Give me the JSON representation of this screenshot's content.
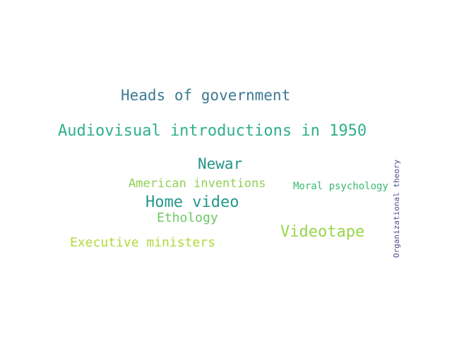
{
  "words": {
    "heads": {
      "text": "Heads of government",
      "color": "#3b7a93"
    },
    "audio": {
      "text": "Audiovisual introductions in 1950",
      "color": "#2fb08a"
    },
    "newar": {
      "text": "Newar",
      "color": "#25958a"
    },
    "american": {
      "text": "American inventions",
      "color": "#8fd152"
    },
    "moral": {
      "text": "Moral psychology",
      "color": "#3aba73"
    },
    "home": {
      "text": "Home video",
      "color": "#23998b"
    },
    "ethology": {
      "text": "Ethology",
      "color": "#6cc864"
    },
    "videotape": {
      "text": "Videotape",
      "color": "#98d64a"
    },
    "exec": {
      "text": "Executive ministers",
      "color": "#b2d93a"
    },
    "org": {
      "text": "Organizational theory",
      "color": "#4a4b8a"
    }
  }
}
